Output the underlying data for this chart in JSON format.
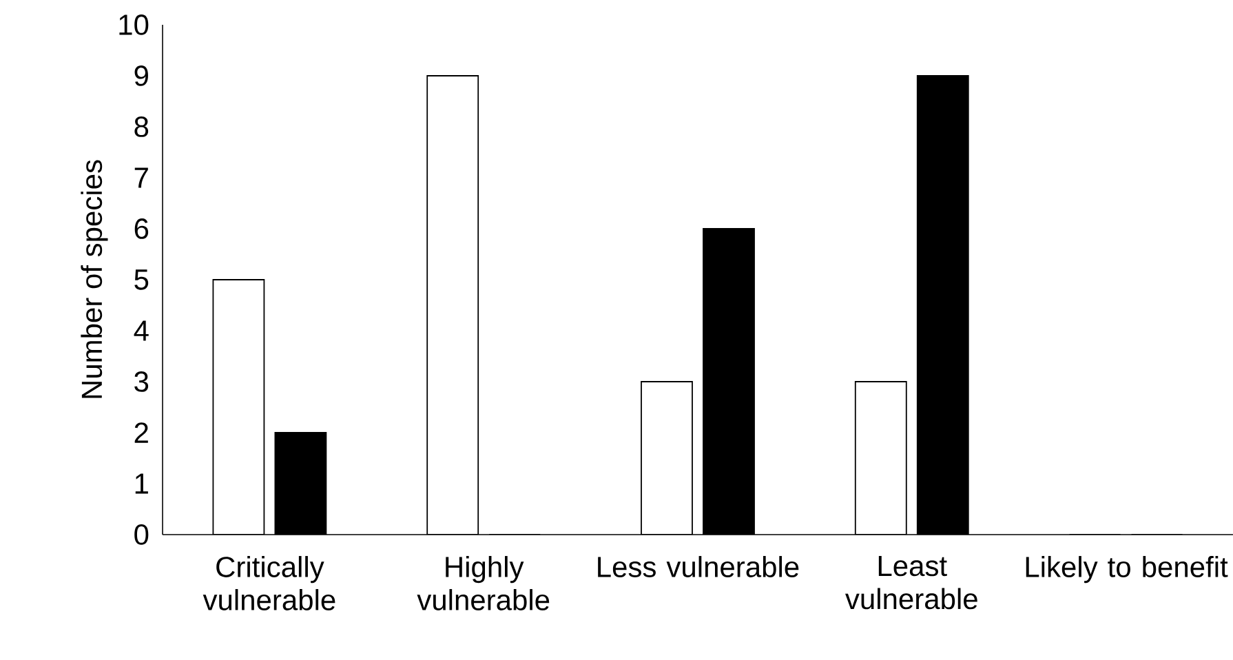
{
  "chart_data": {
    "type": "bar",
    "ylabel": "Number of species",
    "categories": [
      "Critically vulnerable",
      "Highly vulnerable",
      "Less vulnerable",
      "Least vulnerable",
      "Likely to benefit"
    ],
    "series": [
      {
        "color": "#ffffff",
        "values": [
          5,
          9,
          3,
          3,
          0
        ]
      },
      {
        "color": "#000000",
        "values": [
          2,
          0,
          6,
          9,
          0
        ]
      }
    ],
    "ylim": [
      0,
      10
    ],
    "yticks": [
      0,
      1,
      2,
      3,
      4,
      5,
      6,
      7,
      8,
      9,
      10
    ],
    "grid": false
  }
}
